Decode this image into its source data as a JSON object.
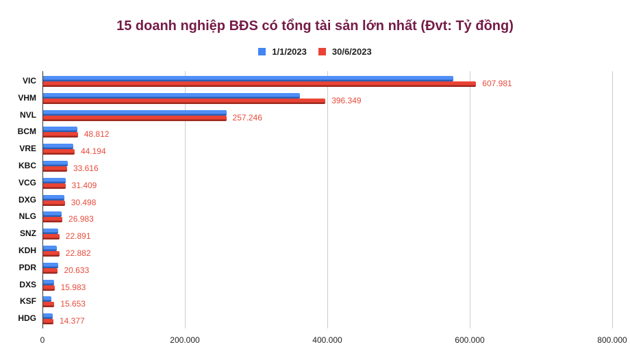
{
  "chart_data": {
    "type": "bar",
    "orientation": "horizontal",
    "title": "15 doanh nghiệp BĐS có tổng tài sản lớn nhất (Đvt: Tỷ đồng)",
    "xlabel": "",
    "ylabel": "",
    "xlim": [
      0,
      800000
    ],
    "x_ticks": [
      "0",
      "200.000",
      "400.000",
      "600.000",
      "800.000"
    ],
    "grid": true,
    "legend_position": "top",
    "categories": [
      "VIC",
      "VHM",
      "NVL",
      "BCM",
      "VRE",
      "KBC",
      "VCG",
      "DXG",
      "NLG",
      "SNZ",
      "KDH",
      "PDR",
      "DXS",
      "KSF",
      "HDG"
    ],
    "series": [
      {
        "name": "1/1/2023",
        "color": "#4285f4",
        "values": [
          576000,
          360500,
          258000,
          48500,
          42500,
          34400,
          31700,
          29600,
          26400,
          21600,
          19000,
          21500,
          15700,
          11800,
          13800
        ]
      },
      {
        "name": "30/6/2023",
        "color": "#ea4335",
        "values": [
          607981,
          396349,
          257246,
          48812,
          44194,
          33616,
          31409,
          30498,
          26983,
          22891,
          22882,
          20633,
          15983,
          15653,
          14377
        ],
        "data_labels": [
          "607.981",
          "396.349",
          "257.246",
          "48.812",
          "44.194",
          "33.616",
          "31.409",
          "30.498",
          "26.983",
          "22.891",
          "22.882",
          "20.633",
          "15.983",
          "15.653",
          "14.377"
        ]
      }
    ]
  },
  "header": {
    "title": "15 doanh nghiệp BĐS có tổng tài sản lớn nhất (Đvt: Tỷ đồng)"
  },
  "legend": [
    {
      "label": "1/1/2023",
      "color": "#4285f4"
    },
    {
      "label": "30/6/2023",
      "color": "#ea4335"
    }
  ]
}
